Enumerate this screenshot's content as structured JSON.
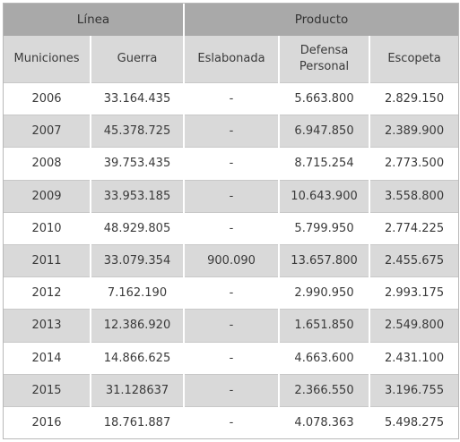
{
  "table": {
    "group_headers": [
      "Línea",
      "Producto"
    ],
    "columns": [
      "Municiones",
      "Guerra",
      "Eslabonada",
      "Defensa Personal",
      "Escopeta"
    ],
    "rows": [
      [
        "2006",
        "33.164.435",
        "-",
        "5.663.800",
        "2.829.150"
      ],
      [
        "2007",
        "45.378.725",
        "-",
        "6.947.850",
        "2.389.900"
      ],
      [
        "2008",
        "39.753.435",
        "-",
        "8.715.254",
        "2.773.500"
      ],
      [
        "2009",
        "33.953.185",
        "-",
        "10.643.900",
        "3.558.800"
      ],
      [
        "2010",
        "48.929.805",
        "-",
        "5.799.950",
        "2.774.225"
      ],
      [
        "2011",
        "33.079.354",
        "900.090",
        "13.657.800",
        "2.455.675"
      ],
      [
        "2012",
        "7.162.190",
        "-",
        "2.990.950",
        "2.993.175"
      ],
      [
        "2013",
        "12.386.920",
        "-",
        "1.651.850",
        "2.549.800"
      ],
      [
        "2014",
        "14.866.625",
        "-",
        "4.663.600",
        "2.431.100"
      ],
      [
        "2015",
        "31.128637",
        "-",
        "2.366.550",
        "3.196.755"
      ],
      [
        "2016",
        "18.761.887",
        "-",
        "4.078.363",
        "5.498.275"
      ]
    ]
  }
}
